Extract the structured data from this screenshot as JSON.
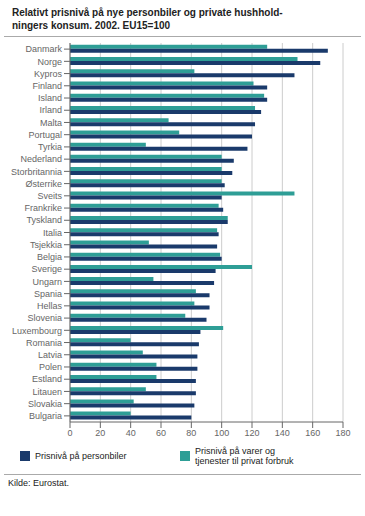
{
  "chart_data": {
    "type": "bar",
    "orientation": "horizontal",
    "title": "Relativt prisnivå på nye personbiler og private hushhold-\nningers konsum. 2002. EU15=100",
    "categories": [
      "Danmark",
      "Norge",
      "Kypros",
      "Finland",
      "Island",
      "Irland",
      "Malta",
      "Portugal",
      "Tyrkia",
      "Nederland",
      "Storbritannia",
      "Østerrike",
      "Sveits",
      "Frankrike",
      "Tyskland",
      "Italia",
      "Tsjekkia",
      "Belgia",
      "Sverige",
      "Ungarn",
      "Spania",
      "Hellas",
      "Slovenia",
      "Luxembourg",
      "Romania",
      "Latvia",
      "Polen",
      "Estland",
      "Litauen",
      "Slovakia",
      "Bulgaria"
    ],
    "series": [
      {
        "name": "Prisnivå på varer og\ntjenester til privat forbruk",
        "color": "#2e9e96",
        "values": [
          130,
          150,
          82,
          121,
          128,
          122,
          65,
          72,
          50,
          100,
          100,
          100,
          148,
          98,
          104,
          97,
          52,
          99,
          120,
          55,
          83,
          82,
          76,
          101,
          40,
          48,
          57,
          57,
          50,
          42,
          40
        ]
      },
      {
        "name": "Prisnivå på personbiler",
        "color": "#1a3a6b",
        "values": [
          170,
          165,
          148,
          130,
          130,
          126,
          122,
          120,
          117,
          108,
          107,
          102,
          100,
          101,
          104,
          98,
          97,
          100,
          96,
          95,
          92,
          92,
          90,
          86,
          85,
          84,
          84,
          83,
          83,
          82,
          80
        ]
      }
    ],
    "xlim": [
      0,
      180
    ],
    "xticks": [
      0,
      20,
      40,
      60,
      80,
      100,
      120,
      140,
      160,
      180
    ],
    "grid": true,
    "legend": "bottom",
    "annotations": [
      "Kilde: Eurostat."
    ]
  }
}
